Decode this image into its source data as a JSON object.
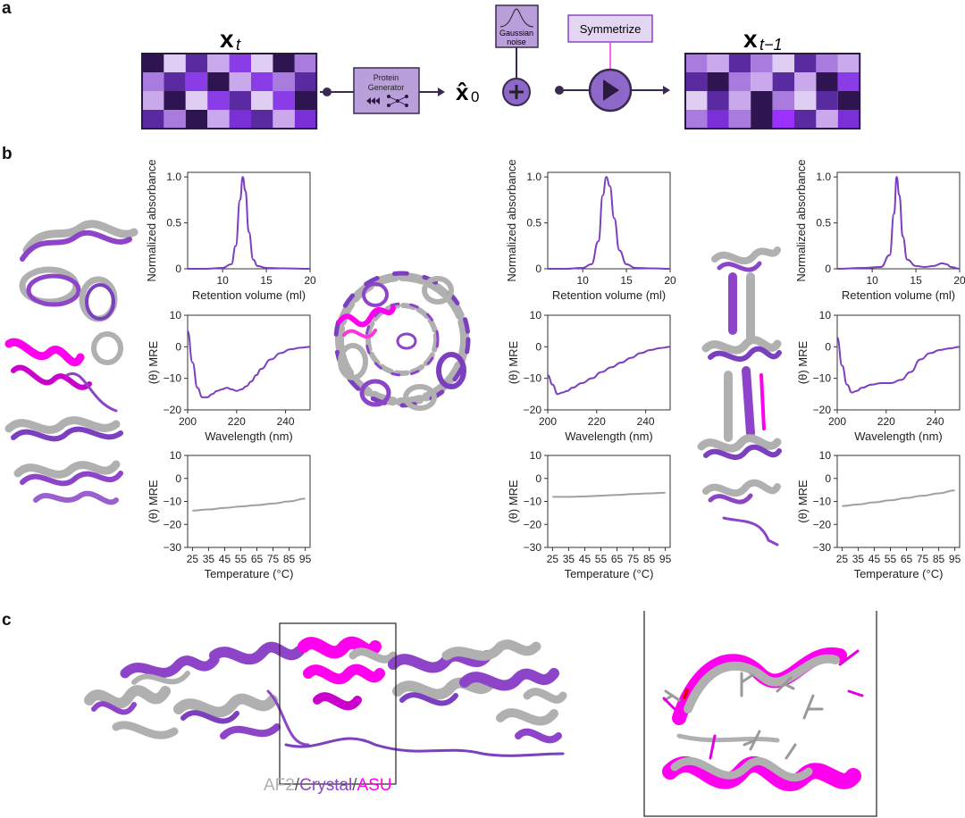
{
  "panels": {
    "a": "a",
    "b": "b",
    "c": "c"
  },
  "panel_a": {
    "xt_label": "x",
    "xt_sub": "t",
    "generator_line1": "Protein",
    "generator_line2": "Generator",
    "x0_label": "x̂",
    "x0_sub": "0",
    "noise_line1": "Gaussian",
    "noise_line2": "noise",
    "symmetrize": "Symmetrize",
    "xt1_label": "x",
    "xt1_sub": "t−1",
    "grid_colors": [
      "#2e1450",
      "#5a2aa0",
      "#8a3de6",
      "#a97bde",
      "#c9a8ec",
      "#e0cdf4",
      "#7b2fd6",
      "#9b30ff"
    ],
    "grid_left": [
      [
        0,
        5,
        1,
        4,
        2,
        5,
        0,
        3
      ],
      [
        3,
        1,
        2,
        0,
        4,
        2,
        3,
        1
      ],
      [
        4,
        0,
        5,
        2,
        1,
        5,
        2,
        0
      ],
      [
        1,
        3,
        0,
        4,
        6,
        1,
        4,
        6
      ]
    ],
    "grid_right": [
      [
        3,
        4,
        1,
        3,
        5,
        1,
        3,
        4
      ],
      [
        1,
        0,
        3,
        4,
        1,
        4,
        0,
        2
      ],
      [
        5,
        1,
        4,
        0,
        3,
        5,
        1,
        0
      ],
      [
        3,
        6,
        3,
        0,
        7,
        1,
        4,
        6
      ]
    ]
  },
  "panel_b": {
    "sec_ylabel": "Normalized absorbance",
    "sec_xlabel": "Retention volume (ml)",
    "cd_ylabel": "(θ) MRE",
    "cd_xlabel": "Wavelength (nm)",
    "melt_ylabel": "(θ) MRE",
    "melt_xlabel": "Temperature (°C)",
    "sec_yticks": [
      "1.0",
      "0.5",
      "0"
    ],
    "sec_xticks": [
      "10",
      "15",
      "20"
    ],
    "cd_yticks": [
      "10",
      "0",
      "−10",
      "−20"
    ],
    "cd_xticks": [
      "200",
      "220",
      "240"
    ],
    "melt_yticks": [
      "10",
      "0",
      "−10",
      "−20",
      "−30"
    ],
    "melt_xticks": [
      "25",
      "35",
      "45",
      "55",
      "65",
      "75",
      "85",
      "95"
    ]
  },
  "chart_data": [
    {
      "type": "line",
      "panel": "b-1-sec",
      "xlabel": "Retention volume (ml)",
      "ylabel": "Normalized absorbance",
      "xlim": [
        6,
        20
      ],
      "ylim": [
        0,
        1.05
      ],
      "x": [
        6,
        8,
        10,
        11,
        11.5,
        12,
        12.3,
        12.6,
        13,
        13.5,
        14,
        15,
        17,
        20
      ],
      "y": [
        0,
        0,
        0.01,
        0.05,
        0.25,
        0.75,
        1.0,
        0.85,
        0.4,
        0.1,
        0.03,
        0.01,
        0.005,
        0
      ]
    },
    {
      "type": "line",
      "panel": "b-1-cd",
      "xlabel": "Wavelength (nm)",
      "ylabel": "(θ) MRE",
      "xlim": [
        200,
        250
      ],
      "ylim": [
        -20,
        10
      ],
      "x": [
        200,
        202,
        204,
        206,
        208,
        210,
        212,
        214,
        216,
        218,
        220,
        222,
        224,
        226,
        228,
        230,
        234,
        238,
        242,
        246,
        250
      ],
      "y": [
        5,
        -5,
        -13,
        -16,
        -16,
        -15,
        -14,
        -13.5,
        -13,
        -13.5,
        -14,
        -13.5,
        -12.5,
        -11,
        -9,
        -7,
        -4,
        -2,
        -0.8,
        -0.3,
        0
      ]
    },
    {
      "type": "line",
      "panel": "b-1-melt",
      "xlabel": "Temperature (°C)",
      "ylabel": "(θ) MRE",
      "xlim": [
        22,
        98
      ],
      "ylim": [
        -30,
        10
      ],
      "x": [
        25,
        35,
        45,
        55,
        65,
        75,
        85,
        95
      ],
      "y": [
        -14,
        -13.5,
        -12.8,
        -12.2,
        -11.6,
        -10.9,
        -10,
        -8.8
      ]
    },
    {
      "type": "line",
      "panel": "b-2-sec",
      "xlabel": "Retention volume (ml)",
      "ylabel": "Normalized absorbance",
      "xlim": [
        6,
        20
      ],
      "ylim": [
        0,
        1.05
      ],
      "x": [
        6,
        8,
        10,
        11,
        11.8,
        12.3,
        12.7,
        13.1,
        13.6,
        14.2,
        15,
        16,
        18,
        20
      ],
      "y": [
        0,
        0,
        0.01,
        0.05,
        0.3,
        0.8,
        1.0,
        0.9,
        0.55,
        0.2,
        0.05,
        0.01,
        0.005,
        0
      ]
    },
    {
      "type": "line",
      "panel": "b-2-cd",
      "xlabel": "Wavelength (nm)",
      "ylabel": "(θ) MRE",
      "xlim": [
        200,
        250
      ],
      "ylim": [
        -20,
        10
      ],
      "x": [
        200,
        202,
        204,
        206,
        208,
        210,
        214,
        218,
        222,
        226,
        230,
        234,
        238,
        242,
        246,
        250
      ],
      "y": [
        -9,
        -12,
        -15,
        -14.5,
        -14,
        -13,
        -11.5,
        -10,
        -8,
        -6.5,
        -5,
        -3.5,
        -2,
        -1,
        -0.4,
        0
      ]
    },
    {
      "type": "line",
      "panel": "b-2-melt",
      "xlabel": "Temperature (°C)",
      "ylabel": "(θ) MRE",
      "xlim": [
        22,
        98
      ],
      "ylim": [
        -30,
        10
      ],
      "x": [
        25,
        35,
        45,
        55,
        65,
        75,
        85,
        95
      ],
      "y": [
        -8,
        -8,
        -7.8,
        -7.5,
        -7.2,
        -6.8,
        -6.5,
        -6.2
      ]
    },
    {
      "type": "line",
      "panel": "b-3-sec",
      "xlabel": "Retention volume (ml)",
      "ylabel": "Normalized absorbance",
      "xlim": [
        6,
        20
      ],
      "ylim": [
        0,
        1.05
      ],
      "x": [
        6,
        9,
        11,
        12,
        12.5,
        12.8,
        13.1,
        13.5,
        14,
        15,
        16,
        17,
        18,
        18.5,
        19,
        20
      ],
      "y": [
        0,
        0.01,
        0.02,
        0.15,
        0.6,
        1.0,
        0.8,
        0.35,
        0.1,
        0.03,
        0.02,
        0.03,
        0.06,
        0.05,
        0.02,
        0
      ]
    },
    {
      "type": "line",
      "panel": "b-3-cd",
      "xlabel": "Wavelength (nm)",
      "ylabel": "(θ) MRE",
      "xlim": [
        200,
        250
      ],
      "ylim": [
        -20,
        10
      ],
      "x": [
        200,
        202,
        204,
        206,
        208,
        210,
        214,
        218,
        222,
        226,
        230,
        234,
        238,
        242,
        246,
        250
      ],
      "y": [
        3,
        -6,
        -12,
        -14.5,
        -14,
        -13,
        -12,
        -11.5,
        -11.5,
        -10.5,
        -8,
        -4,
        -2,
        -1,
        -0.5,
        0
      ]
    },
    {
      "type": "line",
      "panel": "b-3-melt",
      "xlabel": "Temperature (°C)",
      "ylabel": "(θ) MRE",
      "xlim": [
        22,
        98
      ],
      "ylim": [
        -30,
        10
      ],
      "x": [
        25,
        35,
        45,
        55,
        65,
        75,
        85,
        95
      ],
      "y": [
        -12,
        -11.3,
        -10.4,
        -9.5,
        -8.5,
        -7.5,
        -6.5,
        -5.2
      ]
    }
  ],
  "panel_c": {
    "legend_af2": "AF2",
    "legend_sep1": "/",
    "legend_crystal": "Crystal",
    "legend_sep2": "/",
    "legend_asu": "ASU"
  },
  "colors": {
    "line": "#7b3fbf",
    "melt": "#a0a0a0",
    "af2": "#b0b0b0",
    "crystal": "#8e44c9",
    "asu": "#ff00ee",
    "dark": "#5a2a90"
  }
}
